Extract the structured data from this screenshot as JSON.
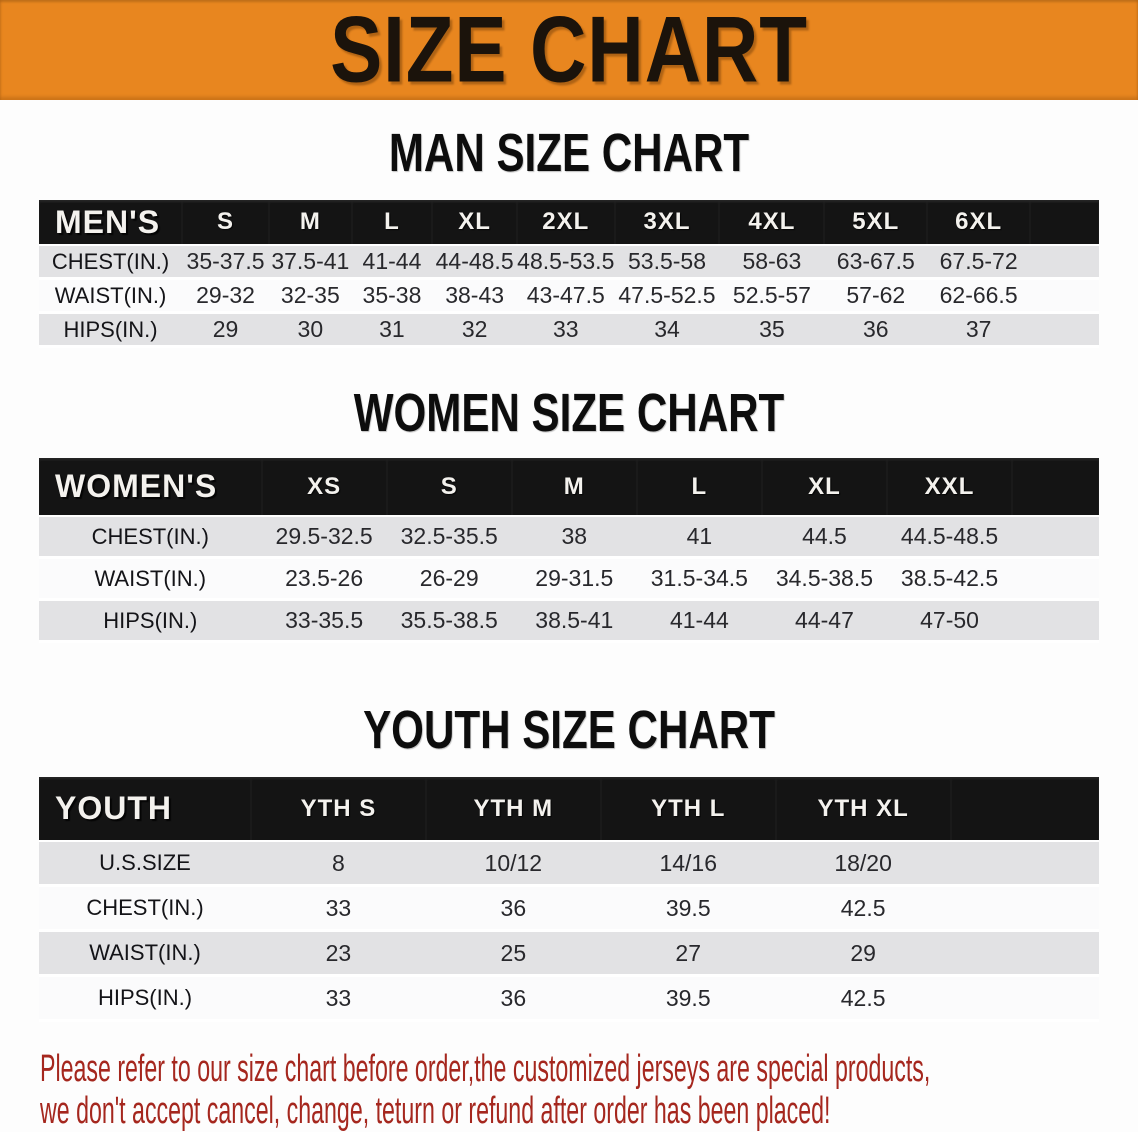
{
  "banner": {
    "title": "SIZE CHART"
  },
  "colors": {
    "banner_bg": "#E8861F",
    "table_header_bg": "#141414",
    "row_alt_gray": "#E2E2E4",
    "row_white": "#FBFBFC",
    "notice_text": "#A5271E"
  },
  "sections": [
    {
      "heading": "MAN SIZE CHART",
      "table": {
        "header_label": "MEN'S",
        "columns": [
          "S",
          "M",
          "L",
          "XL",
          "2XL",
          "3XL",
          "4XL",
          "5XL",
          "6XL"
        ],
        "rows": [
          {
            "label": "CHEST(IN.)",
            "values": [
              "35-37.5",
              "37.5-41",
              "41-44",
              "44-48.5",
              "48.5-53.5",
              "53.5-58",
              "58-63",
              "63-67.5",
              "67.5-72"
            ]
          },
          {
            "label": "WAIST(IN.)",
            "values": [
              "29-32",
              "32-35",
              "35-38",
              "38-43",
              "43-47.5",
              "47.5-52.5",
              "52.5-57",
              "57-62",
              "62-66.5"
            ]
          },
          {
            "label": "HIPS(IN.)",
            "values": [
              "29",
              "30",
              "31",
              "32",
              "33",
              "34",
              "35",
              "36",
              "37"
            ]
          }
        ]
      }
    },
    {
      "heading": "WOMEN SIZE CHART",
      "table": {
        "header_label": "WOMEN'S",
        "columns": [
          "XS",
          "S",
          "M",
          "L",
          "XL",
          "XXL"
        ],
        "rows": [
          {
            "label": "CHEST(IN.)",
            "values": [
              "29.5-32.5",
              "32.5-35.5",
              "38",
              "41",
              "44.5",
              "44.5-48.5"
            ]
          },
          {
            "label": "WAIST(IN.)",
            "values": [
              "23.5-26",
              "26-29",
              "29-31.5",
              "31.5-34.5",
              "34.5-38.5",
              "38.5-42.5"
            ]
          },
          {
            "label": "HIPS(IN.)",
            "values": [
              "33-35.5",
              "35.5-38.5",
              "38.5-41",
              "41-44",
              "44-47",
              "47-50"
            ]
          }
        ]
      }
    },
    {
      "heading": "YOUTH SIZE CHART",
      "table": {
        "header_label": "YOUTH",
        "columns": [
          "YTH S",
          "YTH M",
          "YTH L",
          "YTH XL"
        ],
        "rows": [
          {
            "label": "U.S.SIZE",
            "values": [
              "8",
              "10/12",
              "14/16",
              "18/20"
            ]
          },
          {
            "label": "CHEST(IN.)",
            "values": [
              "33",
              "36",
              "39.5",
              "42.5"
            ]
          },
          {
            "label": "WAIST(IN.)",
            "values": [
              "23",
              "25",
              "27",
              "29"
            ]
          },
          {
            "label": "HIPS(IN.)",
            "values": [
              "33",
              "36",
              "39.5",
              "42.5"
            ]
          }
        ]
      }
    }
  ],
  "footer": {
    "line1": "Please refer to our size chart before order,the customized jerseys are special products,",
    "line2": "we don't accept cancel, change, teturn or refund after order has been placed!"
  }
}
